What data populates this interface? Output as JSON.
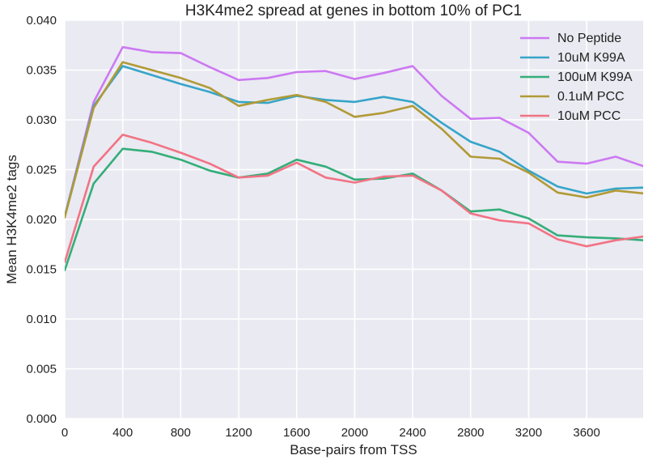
{
  "chart_data": {
    "type": "line",
    "title": "H3K4me2 spread at genes in bottom 10% of PC1",
    "xlabel": "Base-pairs from TSS",
    "ylabel": "Mean H3K4me2 tags",
    "xlim": [
      0,
      3990
    ],
    "ylim": [
      0.0,
      0.04
    ],
    "xticks": [
      0,
      400,
      800,
      1200,
      1600,
      2000,
      2400,
      2800,
      3200,
      3600
    ],
    "xtick_labels": [
      "0",
      "400",
      "800",
      "1200",
      "1600",
      "2000",
      "2400",
      "2800",
      "3200",
      "3600"
    ],
    "yticks": [
      0.0,
      0.005,
      0.01,
      0.015,
      0.02,
      0.025,
      0.03,
      0.035,
      0.04
    ],
    "ytick_labels": [
      "0.000",
      "0.005",
      "0.010",
      "0.015",
      "0.020",
      "0.025",
      "0.030",
      "0.035",
      "0.040"
    ],
    "grid": true,
    "legend_position": "top-right",
    "background_color": "#eaeaf2",
    "grid_color": "#ffffff",
    "x": [
      0,
      200,
      400,
      600,
      800,
      1000,
      1200,
      1400,
      1600,
      1800,
      2000,
      2200,
      2400,
      2600,
      2800,
      3000,
      3200,
      3400,
      3600,
      3800,
      4000
    ],
    "series": [
      {
        "name": "No Peptide",
        "color": "#cc79f2",
        "values": [
          0.0203,
          0.0318,
          0.0373,
          0.0368,
          0.0367,
          0.0353,
          0.034,
          0.0342,
          0.0348,
          0.0349,
          0.0341,
          0.0347,
          0.0354,
          0.0324,
          0.0301,
          0.0302,
          0.0287,
          0.0258,
          0.0256,
          0.0263,
          0.0253
        ]
      },
      {
        "name": "10uM K99A",
        "color": "#36a5c8",
        "values": [
          0.0203,
          0.0314,
          0.0354,
          0.0345,
          0.0336,
          0.0328,
          0.0318,
          0.0317,
          0.0324,
          0.032,
          0.0318,
          0.0323,
          0.0318,
          0.0297,
          0.0278,
          0.0268,
          0.0249,
          0.0233,
          0.0226,
          0.0231,
          0.0232
        ]
      },
      {
        "name": "100uM K99A",
        "color": "#34ae79",
        "values": [
          0.0149,
          0.0236,
          0.0271,
          0.0268,
          0.026,
          0.0249,
          0.0242,
          0.0246,
          0.026,
          0.0253,
          0.024,
          0.0241,
          0.0246,
          0.0229,
          0.0208,
          0.021,
          0.0201,
          0.0184,
          0.0182,
          0.0181,
          0.0179
        ]
      },
      {
        "name": "0.1uM PCC",
        "color": "#b19a36",
        "values": [
          0.0202,
          0.0312,
          0.0358,
          0.035,
          0.0342,
          0.0332,
          0.0314,
          0.032,
          0.0325,
          0.0318,
          0.0303,
          0.0307,
          0.0314,
          0.0291,
          0.0263,
          0.0261,
          0.0247,
          0.0227,
          0.0222,
          0.0229,
          0.0226
        ]
      },
      {
        "name": "10uM PCC",
        "color": "#f17384",
        "values": [
          0.0157,
          0.0253,
          0.0285,
          0.0277,
          0.0267,
          0.0256,
          0.0242,
          0.0244,
          0.0257,
          0.0242,
          0.0237,
          0.0243,
          0.0244,
          0.0229,
          0.0206,
          0.0199,
          0.0196,
          0.018,
          0.0173,
          0.0179,
          0.0183
        ]
      }
    ]
  }
}
